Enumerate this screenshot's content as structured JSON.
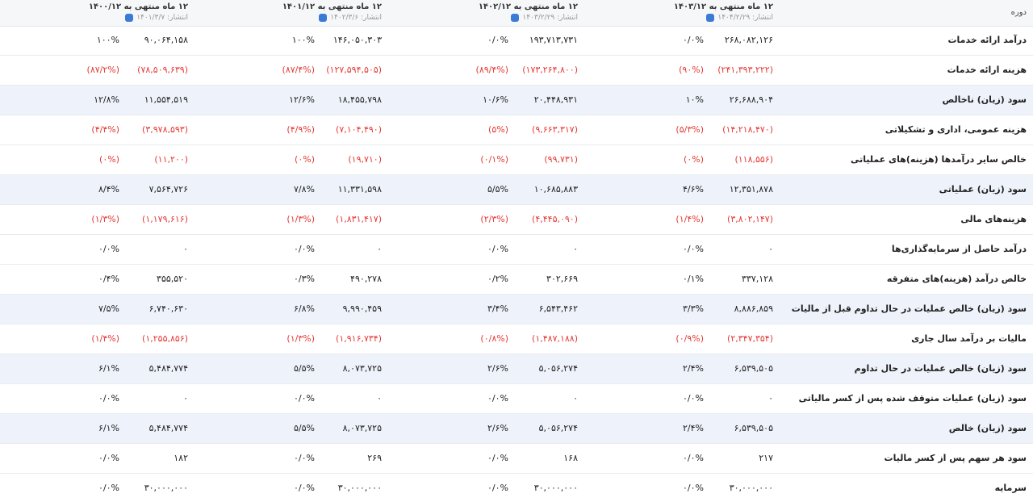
{
  "header": {
    "label": "دوره",
    "periods": [
      {
        "title": "۱۲ ماه منتهی به ۱۴۰۳/۱۲",
        "published": "انتشار: ۱۴۰۴/۲/۲۹"
      },
      {
        "title": "۱۲ ماه منتهی به ۱۴۰۲/۱۲",
        "published": "انتشار: ۱۴۰۳/۲/۲۹"
      },
      {
        "title": "۱۲ ماه منتهی به ۱۴۰۱/۱۲",
        "published": "انتشار: ۱۴۰۲/۳/۶"
      },
      {
        "title": "۱۲ ماه منتهی به ۱۴۰۰/۱۲",
        "published": "انتشار: ۱۴۰۱/۳/۷"
      }
    ]
  },
  "rows": [
    {
      "label": "درآمد ارائه خدمات",
      "cells": [
        [
          "۲۶۸,۰۸۲,۱۲۶",
          "۰/۰%"
        ],
        [
          "۱۹۳,۷۱۳,۷۳۱",
          "۰/۰%"
        ],
        [
          "۱۴۶,۰۵۰,۳۰۳",
          "۱۰۰%"
        ],
        [
          "۹۰,۰۶۴,۱۵۸",
          "۱۰۰%"
        ]
      ]
    },
    {
      "label": "هزینه ارائه خدمات",
      "cells": [
        [
          "(۲۴۱,۳۹۳,۲۲۲)",
          "(۹۰%)"
        ],
        [
          "(۱۷۳,۲۶۴,۸۰۰)",
          "(۸۹/۴%)"
        ],
        [
          "(۱۲۷,۵۹۴,۵۰۵)",
          "(۸۷/۴%)"
        ],
        [
          "(۷۸,۵۰۹,۶۳۹)",
          "(۸۷/۲%)"
        ]
      ]
    },
    {
      "label": "سود (زیان) ناخالص",
      "cells": [
        [
          "۲۶,۶۸۸,۹۰۴",
          "۱۰%"
        ],
        [
          "۲۰,۴۴۸,۹۳۱",
          "۱۰/۶%"
        ],
        [
          "۱۸,۴۵۵,۷۹۸",
          "۱۲/۶%"
        ],
        [
          "۱۱,۵۵۴,۵۱۹",
          "۱۲/۸%"
        ]
      ]
    },
    {
      "label": "هزینه عمومی، اداری و تشکیلاتی",
      "cells": [
        [
          "(۱۴,۲۱۸,۴۷۰)",
          "(۵/۳%)"
        ],
        [
          "(۹,۶۶۳,۳۱۷)",
          "(۵%)"
        ],
        [
          "(۷,۱۰۴,۴۹۰)",
          "(۴/۹%)"
        ],
        [
          "(۳,۹۷۸,۵۹۳)",
          "(۴/۴%)"
        ]
      ]
    },
    {
      "label": "خالص سایر درآمدها (هزینه)های عملیاتی",
      "cells": [
        [
          "(۱۱۸,۵۵۶)",
          "(۰%)"
        ],
        [
          "(۹۹,۷۳۱)",
          "(۰/۱%)"
        ],
        [
          "(۱۹,۷۱۰)",
          "(۰%)"
        ],
        [
          "(۱۱,۲۰۰)",
          "(۰%)"
        ]
      ]
    },
    {
      "label": "سود (زیان) عملیاتی",
      "cells": [
        [
          "۱۲,۳۵۱,۸۷۸",
          "۴/۶%"
        ],
        [
          "۱۰,۶۸۵,۸۸۳",
          "۵/۵%"
        ],
        [
          "۱۱,۳۳۱,۵۹۸",
          "۷/۸%"
        ],
        [
          "۷,۵۶۴,۷۲۶",
          "۸/۴%"
        ]
      ]
    },
    {
      "label": "هزینه‌های مالی",
      "cells": [
        [
          "(۳,۸۰۲,۱۴۷)",
          "(۱/۴%)"
        ],
        [
          "(۴,۴۴۵,۰۹۰)",
          "(۲/۳%)"
        ],
        [
          "(۱,۸۳۱,۴۱۷)",
          "(۱/۳%)"
        ],
        [
          "(۱,۱۷۹,۶۱۶)",
          "(۱/۳%)"
        ]
      ]
    },
    {
      "label": "درآمد حاصل از سرمایه‌گذاری‌ها",
      "cells": [
        [
          "۰",
          "۰/۰%"
        ],
        [
          "۰",
          "۰/۰%"
        ],
        [
          "۰",
          "۰/۰%"
        ],
        [
          "۰",
          "۰/۰%"
        ]
      ]
    },
    {
      "label": "خالص درآمد (هزینه)های متفرقه",
      "cells": [
        [
          "۳۳۷,۱۲۸",
          "۰/۱%"
        ],
        [
          "۳۰۲,۶۶۹",
          "۰/۲%"
        ],
        [
          "۴۹۰,۲۷۸",
          "۰/۳%"
        ],
        [
          "۳۵۵,۵۲۰",
          "۰/۴%"
        ]
      ]
    },
    {
      "label": "سود (زیان) خالص عملیات در حال تداوم قبل از مالیات",
      "cells": [
        [
          "۸,۸۸۶,۸۵۹",
          "۳/۳%"
        ],
        [
          "۶,۵۴۳,۴۶۲",
          "۳/۴%"
        ],
        [
          "۹,۹۹۰,۴۵۹",
          "۶/۸%"
        ],
        [
          "۶,۷۴۰,۶۳۰",
          "۷/۵%"
        ]
      ]
    },
    {
      "label": "مالیات بر درآمد سال جاری",
      "cells": [
        [
          "(۲,۳۴۷,۳۵۴)",
          "(۰/۹%)"
        ],
        [
          "(۱,۴۸۷,۱۸۸)",
          "(۰/۸%)"
        ],
        [
          "(۱,۹۱۶,۷۳۴)",
          "(۱/۳%)"
        ],
        [
          "(۱,۲۵۵,۸۵۶)",
          "(۱/۴%)"
        ]
      ]
    },
    {
      "label": "سود (زیان) خالص عملیات در حال تداوم",
      "cells": [
        [
          "۶,۵۳۹,۵۰۵",
          "۲/۴%"
        ],
        [
          "۵,۰۵۶,۲۷۴",
          "۲/۶%"
        ],
        [
          "۸,۰۷۳,۷۲۵",
          "۵/۵%"
        ],
        [
          "۵,۴۸۴,۷۷۴",
          "۶/۱%"
        ]
      ]
    },
    {
      "label": "سود (زیان) عملیات متوقف شده پس از کسر مالیاتی",
      "cells": [
        [
          "۰",
          "۰/۰%"
        ],
        [
          "۰",
          "۰/۰%"
        ],
        [
          "۰",
          "۰/۰%"
        ],
        [
          "۰",
          "۰/۰%"
        ]
      ]
    },
    {
      "label": "سود (زیان) خالص",
      "cells": [
        [
          "۶,۵۳۹,۵۰۵",
          "۲/۴%"
        ],
        [
          "۵,۰۵۶,۲۷۴",
          "۲/۶%"
        ],
        [
          "۸,۰۷۳,۷۲۵",
          "۵/۵%"
        ],
        [
          "۵,۴۸۴,۷۷۴",
          "۶/۱%"
        ]
      ]
    },
    {
      "label": "سود هر سهم پس از کسر مالیات",
      "cells": [
        [
          "۲۱۷",
          "۰/۰%"
        ],
        [
          "۱۶۸",
          "۰/۰%"
        ],
        [
          "۲۶۹",
          "۰/۰%"
        ],
        [
          "۱۸۲",
          "۰/۰%"
        ]
      ]
    },
    {
      "label": "سرمایه",
      "cells": [
        [
          "۳۰,۰۰۰,۰۰۰",
          "۰/۰%"
        ],
        [
          "۳۰,۰۰۰,۰۰۰",
          "۰/۰%"
        ],
        [
          "۳۰,۰۰۰,۰۰۰",
          "۰/۰%"
        ],
        [
          "۳۰,۰۰۰,۰۰۰",
          "۰/۰%"
        ]
      ]
    }
  ]
}
